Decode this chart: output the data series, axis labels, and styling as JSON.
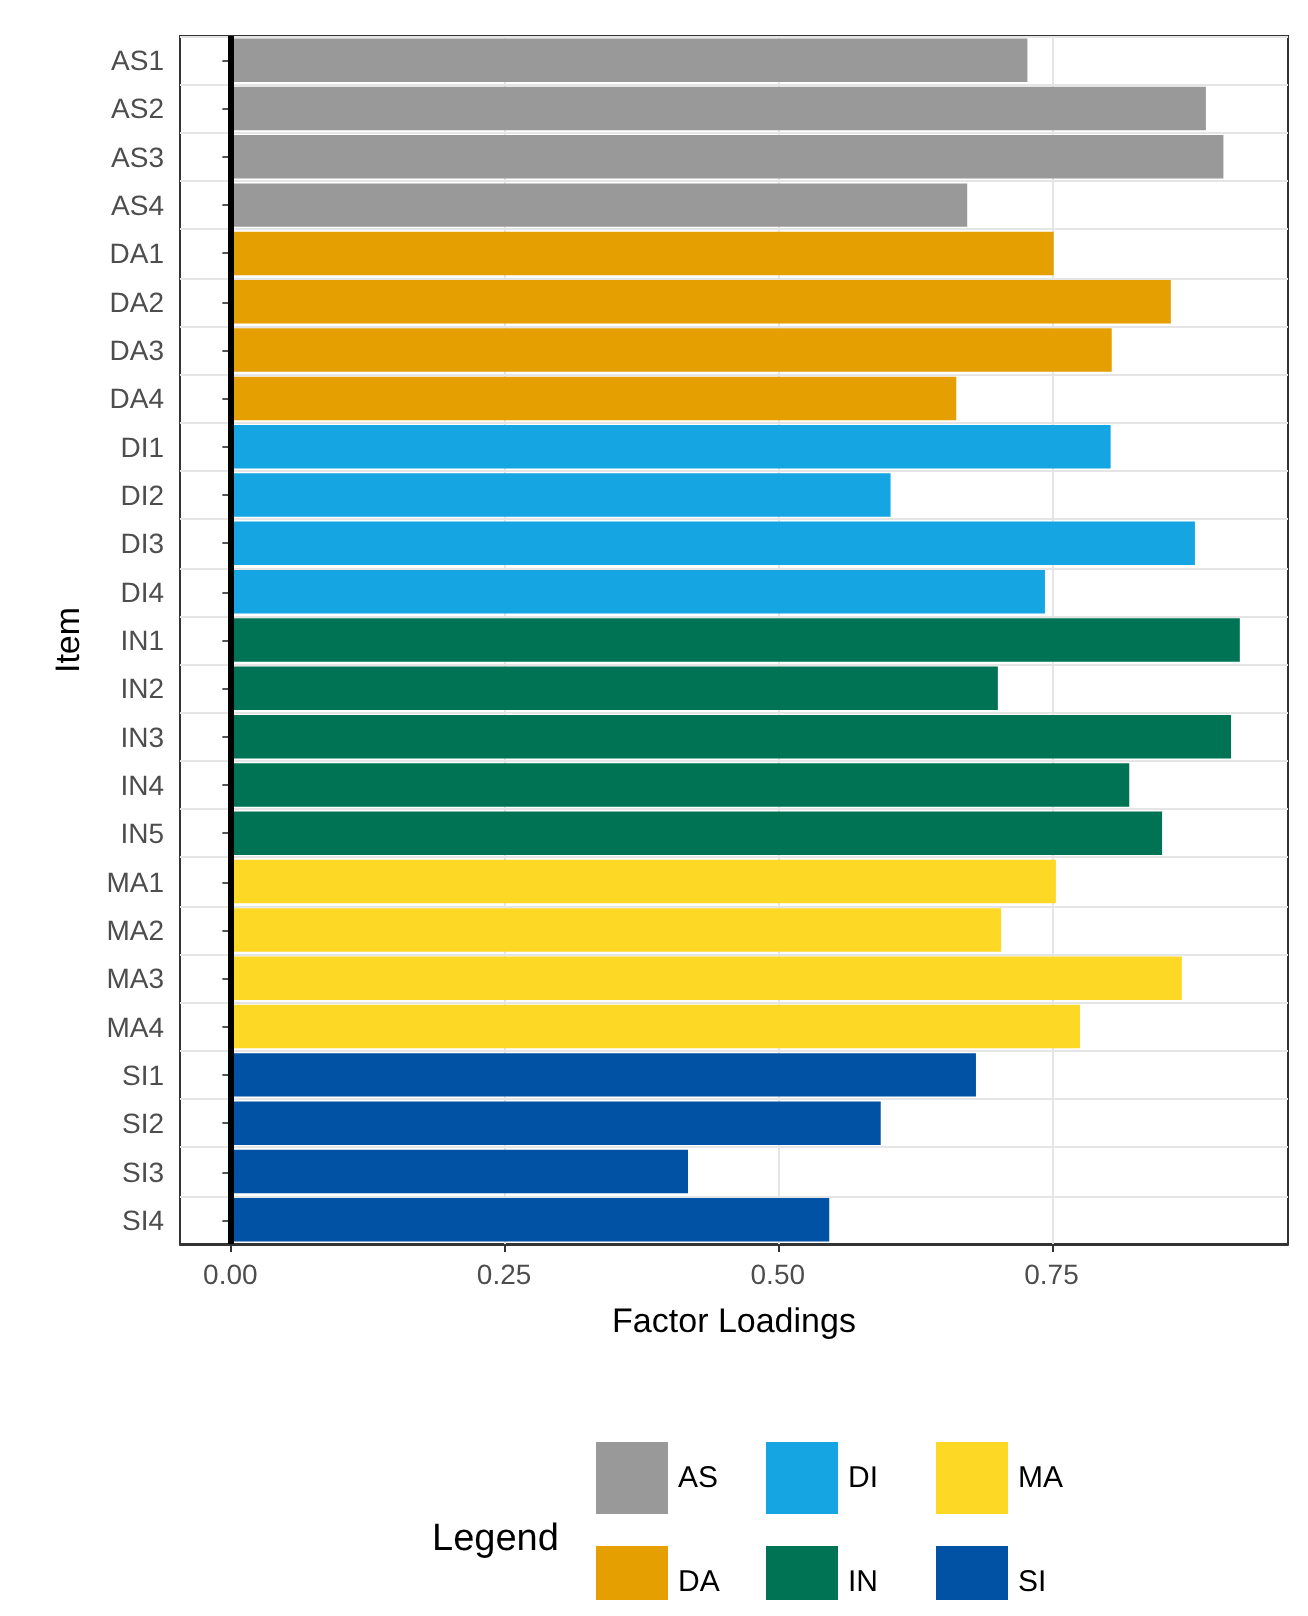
{
  "chart_data": {
    "type": "bar",
    "orientation": "horizontal",
    "xlabel": "Factor Loadings",
    "ylabel": "Item",
    "legend_title": "Legend",
    "categories": [
      "AS1",
      "AS2",
      "AS3",
      "AS4",
      "DA1",
      "DA2",
      "DA3",
      "DA4",
      "DI1",
      "DI2",
      "DI3",
      "DI4",
      "IN1",
      "IN2",
      "IN3",
      "IN4",
      "IN5",
      "MA1",
      "MA2",
      "MA3",
      "MA4",
      "SI1",
      "SI2",
      "SI3",
      "SI4"
    ],
    "series": [
      {
        "name": "AS",
        "color": "#999999",
        "values": [
          0.728,
          0.891,
          0.907,
          0.673,
          null,
          null,
          null,
          null,
          null,
          null,
          null,
          null,
          null,
          null,
          null,
          null,
          null,
          null,
          null,
          null,
          null,
          null,
          null,
          null,
          null
        ]
      },
      {
        "name": "DA",
        "color": "#e69f00",
        "values": [
          null,
          null,
          null,
          null,
          0.752,
          0.859,
          0.805,
          0.663,
          null,
          null,
          null,
          null,
          null,
          null,
          null,
          null,
          null,
          null,
          null,
          null,
          null,
          null,
          null,
          null,
          null
        ]
      },
      {
        "name": "DI",
        "color": "#14a5e2",
        "values": [
          null,
          null,
          null,
          null,
          null,
          null,
          null,
          null,
          0.804,
          0.603,
          0.881,
          0.744,
          null,
          null,
          null,
          null,
          null,
          null,
          null,
          null,
          null,
          null,
          null,
          null,
          null
        ]
      },
      {
        "name": "IN",
        "color": "#007355",
        "values": [
          null,
          null,
          null,
          null,
          null,
          null,
          null,
          null,
          null,
          null,
          null,
          null,
          0.922,
          0.701,
          0.914,
          0.821,
          0.851,
          null,
          null,
          null,
          null,
          null,
          null,
          null,
          null
        ]
      },
      {
        "name": "MA",
        "color": "#fdd824",
        "values": [
          null,
          null,
          null,
          null,
          null,
          null,
          null,
          null,
          null,
          null,
          null,
          null,
          null,
          null,
          null,
          null,
          null,
          0.754,
          0.704,
          0.869,
          0.776,
          null,
          null,
          null,
          null
        ]
      },
      {
        "name": "SI",
        "color": "#0152a4",
        "values": [
          null,
          null,
          null,
          null,
          null,
          null,
          null,
          null,
          null,
          null,
          null,
          null,
          null,
          null,
          null,
          null,
          null,
          null,
          null,
          null,
          null,
          0.681,
          0.594,
          0.418,
          0.547
        ]
      }
    ],
    "xlim": [
      -0.046,
      0.966
    ],
    "xticks": [
      {
        "value": 0,
        "label": "0.00"
      },
      0.25,
      {
        "value": 0.5,
        "label": "0.50"
      },
      0.75
    ],
    "ref_lines": [
      {
        "axis": "x",
        "value": 0,
        "color": "#000000"
      }
    ],
    "grid": true,
    "legend": "bottom"
  }
}
